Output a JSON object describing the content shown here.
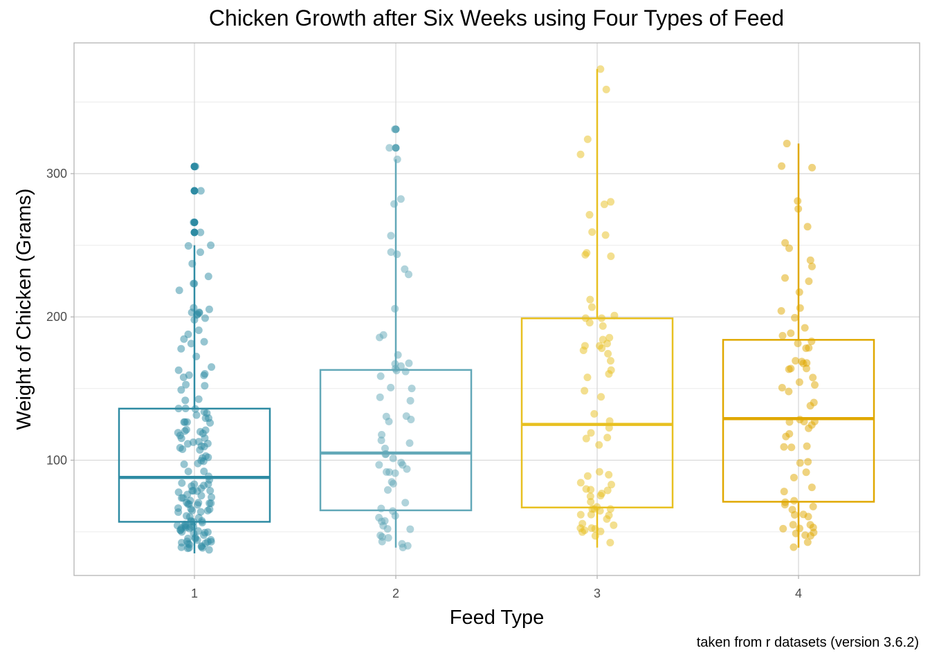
{
  "chart_data": {
    "type": "box",
    "title": "Chicken Growth after Six Weeks using Four Types of Feed",
    "xlabel": "Feed Type",
    "ylabel": "Weight of Chicken (Grams)",
    "caption": "taken from r datasets (version 3.6.2)",
    "categories": [
      "1",
      "2",
      "3",
      "4"
    ],
    "y_ticks": [
      100,
      200,
      300
    ],
    "ylim": [
      18,
      390
    ],
    "grid": true,
    "jittered_points": true,
    "colors": [
      "#2e8ba3",
      "#62a8b8",
      "#e8c020",
      "#e0a800"
    ],
    "boxes": [
      {
        "category": "1",
        "min": 35,
        "q1": 57,
        "median": 88,
        "q3": 136,
        "max": 250,
        "outliers": [
          259,
          266,
          288,
          305
        ]
      },
      {
        "category": "2",
        "min": 39,
        "q1": 65,
        "median": 105,
        "q3": 163,
        "max": 310,
        "outliers": [
          318,
          331
        ]
      },
      {
        "category": "3",
        "min": 39,
        "q1": 67,
        "median": 125,
        "q3": 199,
        "max": 373,
        "outliers": []
      },
      {
        "category": "4",
        "min": 39,
        "q1": 71,
        "median": 129,
        "q3": 184,
        "max": 321,
        "outliers": []
      }
    ]
  }
}
